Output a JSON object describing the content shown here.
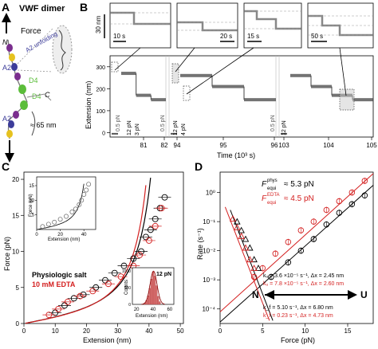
{
  "panels": {
    "A": {
      "label": "A",
      "title": "VWF dimer",
      "force_label": "Force",
      "n_label": "N",
      "c_label": "C",
      "a2_label": "A2",
      "d4_label": "D4",
      "unfolding_label": "A2 unfolding",
      "length_label": "≈ 65 nm"
    },
    "B": {
      "label": "B",
      "yaxis_label": "Extension (nm)",
      "xaxis_label": "Time (10³ s)",
      "scalebar_y": "30 nm",
      "scalebar_times": [
        "10 s",
        "20 s",
        "15 s",
        "50 s"
      ],
      "force_labels": [
        "0.5 pN",
        "12 pN",
        "3 pN",
        "0.5 pN",
        "12 pN",
        "4 pN",
        "0.5 pN",
        "12 pN"
      ]
    },
    "C": {
      "label": "C",
      "legend_physio": "Physiologic salt",
      "legend_edta": "10 mM EDTA",
      "inset_force_label": "Force (pN)",
      "inset_ext_label": "Extension (nm)",
      "hist_label": "12 pN",
      "hist_ylabel": "Counts",
      "hist_xlabel": "Extension (nm)"
    },
    "D": {
      "label": "D",
      "f_phys": "F",
      "f_phys_sup": "phys",
      "f_phys_sub": "equi",
      "f_phys_val": "≈ 5.3 pN",
      "f_edta": "F",
      "f_edta_sup": "EDTA",
      "f_edta_sub": "equi",
      "f_edta_val": "≈ 4.5 pN",
      "n_label": "N",
      "u_label": "U",
      "ku_black": "kᵤ = 3.6 ×10⁻⁵ s⁻¹, Δx = 2.45 nm",
      "ku_red": "kᵤ = 7.8 ×10⁻⁵ s⁻¹, Δx = 2.60 nm",
      "kf_black": "k_f = 5.10 s⁻¹, Δx = 6.80 nm",
      "kf_red": "k_f = 0.23 s⁻¹, Δx = 4.73 nm"
    }
  },
  "colors": {
    "physio": "#000000",
    "edta": "#d42020",
    "a2": "#3c3c9a",
    "d4": "#5bbd3a",
    "other": "#7a2e8e",
    "yellow": "#e6c21f"
  },
  "chart_data": [
    {
      "type": "line",
      "panel": "B",
      "xlabel": "Time (10³ s)",
      "ylabel": "Extension (nm)",
      "xticks": [
        "81",
        "82",
        "94",
        "95",
        "96",
        "103",
        "104",
        "105"
      ],
      "yticks": [
        "0",
        "100",
        "200",
        "300"
      ],
      "ylim": [
        -20,
        350
      ],
      "segments": [
        {
          "time_range": [
            80.0,
            82.0
          ],
          "levels_nm": [
            270,
            170,
            150
          ]
        },
        {
          "time_range": [
            93.8,
            96.2
          ],
          "levels_nm": [
            260,
            210,
            150
          ]
        },
        {
          "time_range": [
            102.8,
            105.0
          ],
          "levels_nm": [
            260,
            210,
            170,
            150
          ]
        }
      ]
    },
    {
      "type": "scatter",
      "panel": "C",
      "xlabel": "Extension (nm)",
      "ylabel": "Force (pN)",
      "xticks": [
        "0",
        "10",
        "20",
        "30",
        "40",
        "50"
      ],
      "yticks": [
        "0",
        "5",
        "10",
        "15",
        "20"
      ],
      "xlim": [
        0,
        51
      ],
      "ylim": [
        0,
        21
      ],
      "series": [
        {
          "name": "Physiologic salt",
          "x": [
            10,
            13,
            16,
            19,
            23,
            26,
            29,
            32,
            35,
            37.5,
            39,
            40.5,
            42,
            43.5,
            45
          ],
          "y": [
            1.5,
            2.5,
            3.5,
            4.0,
            5.0,
            6.0,
            7.0,
            8.0,
            9.0,
            10.0,
            12.0,
            13.0,
            14.5,
            16.0,
            17.5
          ]
        },
        {
          "name": "10 mM EDTA",
          "x": [
            8,
            11,
            14,
            18,
            22,
            27,
            31,
            35,
            37,
            40,
            42,
            44
          ],
          "y": [
            1.2,
            2.0,
            3.0,
            3.8,
            4.5,
            5.5,
            6.5,
            8.0,
            9.5,
            11.5,
            13.5,
            16.0
          ]
        }
      ],
      "inset": {
        "xlabel": "Extension (nm)",
        "ylabel": "Force (pN)",
        "xticks": [
          "0",
          "20",
          "40"
        ],
        "yticks": [
          "5",
          "10",
          "15"
        ],
        "xlim": [
          0,
          50
        ],
        "ylim": [
          0,
          18
        ],
        "x": [
          5,
          10,
          15,
          20,
          25,
          30,
          33,
          36,
          38,
          40,
          42,
          44
        ],
        "y": [
          1,
          1.8,
          2.5,
          3.5,
          4.5,
          6,
          7,
          8.5,
          10,
          12,
          13.5,
          15.5
        ]
      },
      "histogram": {
        "xlabel": "Extension (nm)",
        "ylabel": "Counts",
        "xticks": [
          "20",
          "40",
          "60"
        ],
        "yticks": [
          "0",
          "500",
          "1000"
        ],
        "bin_centers": [
          30,
          32,
          34,
          36,
          38,
          40,
          42,
          44,
          46,
          48
        ],
        "counts": [
          40,
          120,
          260,
          480,
          760,
          980,
          850,
          560,
          240,
          80
        ]
      }
    },
    {
      "type": "scatter",
      "panel": "D",
      "xlabel": "Force (pN)",
      "ylabel": "Rate (s⁻¹)",
      "xticks": [
        "0",
        "5",
        "10",
        "15"
      ],
      "yticks": [
        "10⁻⁴",
        "10⁻³",
        "10⁻²",
        "10⁻¹",
        "10⁰"
      ],
      "xlim": [
        0,
        18
      ],
      "ylim_log10": [
        -4.5,
        0.7
      ],
      "series": [
        {
          "name": "unfolding physiologic",
          "x": [
            6,
            8,
            9.5,
            11,
            12.5,
            14,
            15.5,
            17
          ],
          "log10_y": [
            -2.9,
            -2.4,
            -2.0,
            -1.6,
            -1.1,
            -0.7,
            -0.4,
            -0.1
          ]
        },
        {
          "name": "unfolding EDTA",
          "x": [
            4,
            5,
            6.5,
            8,
            9.5,
            11,
            12.5,
            14,
            15.5,
            17
          ],
          "log10_y": [
            -2.9,
            -2.6,
            -2.1,
            -1.7,
            -1.3,
            -1.0,
            -0.6,
            -0.3,
            0.0,
            0.4
          ]
        },
        {
          "name": "refolding physiologic",
          "x": [
            2,
            2.5,
            3,
            3.5,
            4,
            4.5
          ],
          "log10_y": [
            -1.0,
            -1.3,
            -1.6,
            -1.9,
            -2.3,
            -2.6
          ]
        },
        {
          "name": "refolding EDTA",
          "x": [
            1.5,
            2,
            2.5,
            3,
            3.5,
            4
          ],
          "log10_y": [
            -0.9,
            -1.2,
            -1.5,
            -1.9,
            -2.3,
            -2.6
          ]
        }
      ]
    }
  ]
}
